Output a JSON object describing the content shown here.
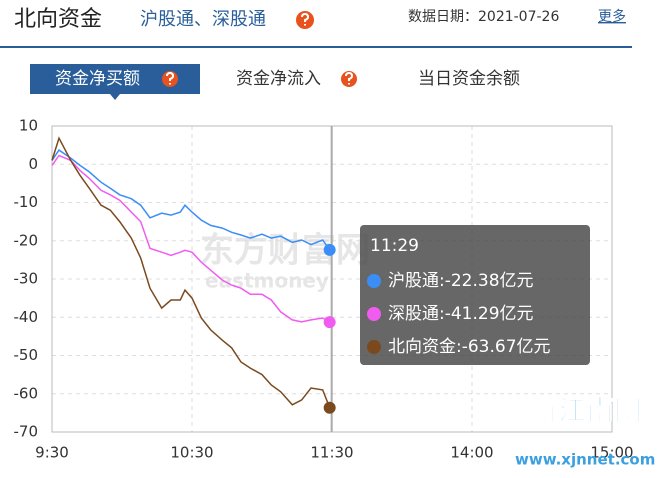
{
  "header": {
    "title": "北向资金",
    "subtitle": "沪股通、深股通",
    "date": "数据日期：2021-07-26",
    "more": "更多"
  },
  "tabs": [
    "资金净买额",
    "资金净流入",
    "当日资金余额"
  ],
  "watermarks": [
    "东方财富网",
    "eastmoney",
    "新江南网",
    "www.xjnnet.com"
  ],
  "tooltip": {
    "title": "11:29",
    "items": [
      "沪股通:-22.38亿元",
      "深股通:-41.29亿元",
      "北向资金:-63.67亿元"
    ]
  },
  "chart_data": {
    "type": "line",
    "x": [
      0,
      3,
      8,
      12,
      16,
      21,
      25,
      29,
      34,
      38,
      42,
      47,
      51,
      55,
      57,
      60,
      64,
      68,
      73,
      77,
      81,
      85,
      90,
      94,
      98,
      103,
      107,
      111,
      116,
      119
    ],
    "xlim": [
      0,
      240
    ],
    "xticks": [
      {
        "value": 0,
        "label": "9:30"
      },
      {
        "value": 60,
        "label": "10:30"
      },
      {
        "value": 120,
        "label": "11:30"
      },
      {
        "value": 180,
        "label": "14:00"
      },
      {
        "value": 240,
        "label": "15:00"
      }
    ],
    "ylim": [
      -70,
      10
    ],
    "yticks": [
      -70,
      -60,
      -50,
      -40,
      -30,
      -20,
      -10,
      0,
      10
    ],
    "grid": true,
    "series": [
      {
        "name": "沪股通",
        "color": "#3a8ef6",
        "values": [
          1,
          3.7,
          1.6,
          -0.3,
          -2,
          -4.7,
          -6.3,
          -8,
          -9,
          -10.7,
          -14,
          -12.8,
          -13.3,
          -12.5,
          -10.7,
          -12.5,
          -14.6,
          -16,
          -16.7,
          -17.8,
          -18.5,
          -19.3,
          -18.3,
          -19.3,
          -18.8,
          -20.4,
          -19.8,
          -21,
          -19.8,
          -22.38
        ]
      },
      {
        "name": "深股通",
        "color": "#f05cf0",
        "values": [
          -0.3,
          2.3,
          1,
          -1.6,
          -3.7,
          -6.8,
          -8,
          -9.4,
          -12.5,
          -15,
          -22,
          -23,
          -23.8,
          -23,
          -22.5,
          -23,
          -25.6,
          -27.7,
          -30.3,
          -31.6,
          -32.4,
          -34,
          -34,
          -35.5,
          -38.6,
          -40.7,
          -41.2,
          -40.7,
          -40.2,
          -41.29
        ]
      },
      {
        "name": "北向资金",
        "color": "#7a4a1e",
        "values": [
          1,
          6.8,
          1,
          -2.9,
          -6.3,
          -10.7,
          -12,
          -15,
          -19.3,
          -24.5,
          -32.4,
          -37.6,
          -35.5,
          -35.5,
          -32.9,
          -35,
          -40.2,
          -43.3,
          -46,
          -48,
          -51.7,
          -53.3,
          -55,
          -57.7,
          -59.5,
          -62.9,
          -61.6,
          -58.5,
          -59,
          -63.67
        ]
      }
    ]
  }
}
